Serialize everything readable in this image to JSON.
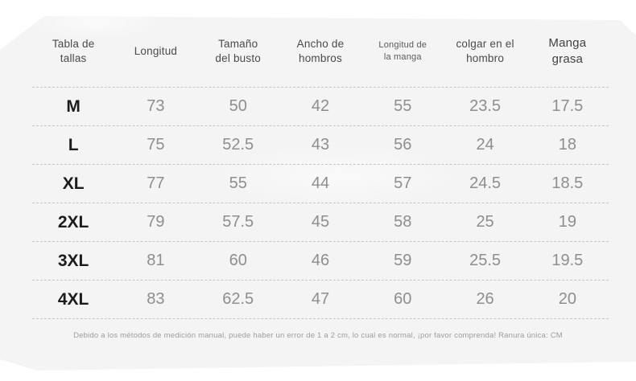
{
  "card": {
    "headers": [
      {
        "label": "Tabla de\ntallas",
        "size": "normal"
      },
      {
        "label": "Longitud",
        "size": "normal"
      },
      {
        "label": "Tamaño\ndel busto",
        "size": "normal"
      },
      {
        "label": "Ancho de\nhombros",
        "size": "normal"
      },
      {
        "label": "Longitud de\nla manga",
        "size": "small"
      },
      {
        "label": "colgar en el\nhombro",
        "size": "normal"
      },
      {
        "label": "Manga\ngrasa",
        "size": "large"
      }
    ],
    "rows": [
      {
        "size": "M",
        "values": [
          "73",
          "50",
          "42",
          "55",
          "23.5",
          "17.5"
        ]
      },
      {
        "size": "L",
        "values": [
          "75",
          "52.5",
          "43",
          "56",
          "24",
          "18"
        ]
      },
      {
        "size": "XL",
        "values": [
          "77",
          "55",
          "44",
          "57",
          "24.5",
          "18.5"
        ]
      },
      {
        "size": "2XL",
        "values": [
          "79",
          "57.5",
          "45",
          "58",
          "25",
          "19"
        ]
      },
      {
        "size": "3XL",
        "values": [
          "81",
          "60",
          "46",
          "59",
          "25.5",
          "19.5"
        ]
      },
      {
        "size": "4XL",
        "values": [
          "83",
          "62.5",
          "47",
          "60",
          "26",
          "20"
        ]
      }
    ],
    "footnote": "Debido a los métodos de medición manual, puede haber un error de 1 a 2 cm, lo cual es normal, ¡por favor comprenda! Ranura única: CM",
    "colors": {
      "card_bg": "#f4f4f5",
      "header_text": "#4a4a4a",
      "value_text": "#8e8e8e",
      "size_text": "#1c1c1c",
      "dash": "#c6c6c6",
      "note_text": "#9d9d9d"
    }
  },
  "chart_data": {
    "type": "table",
    "title": "Tabla de tallas",
    "columns": [
      "Tabla de tallas",
      "Longitud",
      "Tamaño del busto",
      "Ancho de hombros",
      "Longitud de la manga",
      "colgar en el hombro",
      "Manga grasa"
    ],
    "rows": [
      [
        "M",
        73,
        50,
        42,
        55,
        23.5,
        17.5
      ],
      [
        "L",
        75,
        52.5,
        43,
        56,
        24,
        18
      ],
      [
        "XL",
        77,
        55,
        44,
        57,
        24.5,
        18.5
      ],
      [
        "2XL",
        79,
        57.5,
        45,
        58,
        25,
        19
      ],
      [
        "3XL",
        81,
        60,
        46,
        59,
        25.5,
        19.5
      ],
      [
        "4XL",
        83,
        62.5,
        47,
        60,
        26,
        20
      ]
    ],
    "unit": "CM",
    "note": "Debido a los métodos de medición manual, puede haber un error de 1 a 2 cm, lo cual es normal, ¡por favor comprenda! Ranura única: CM"
  }
}
